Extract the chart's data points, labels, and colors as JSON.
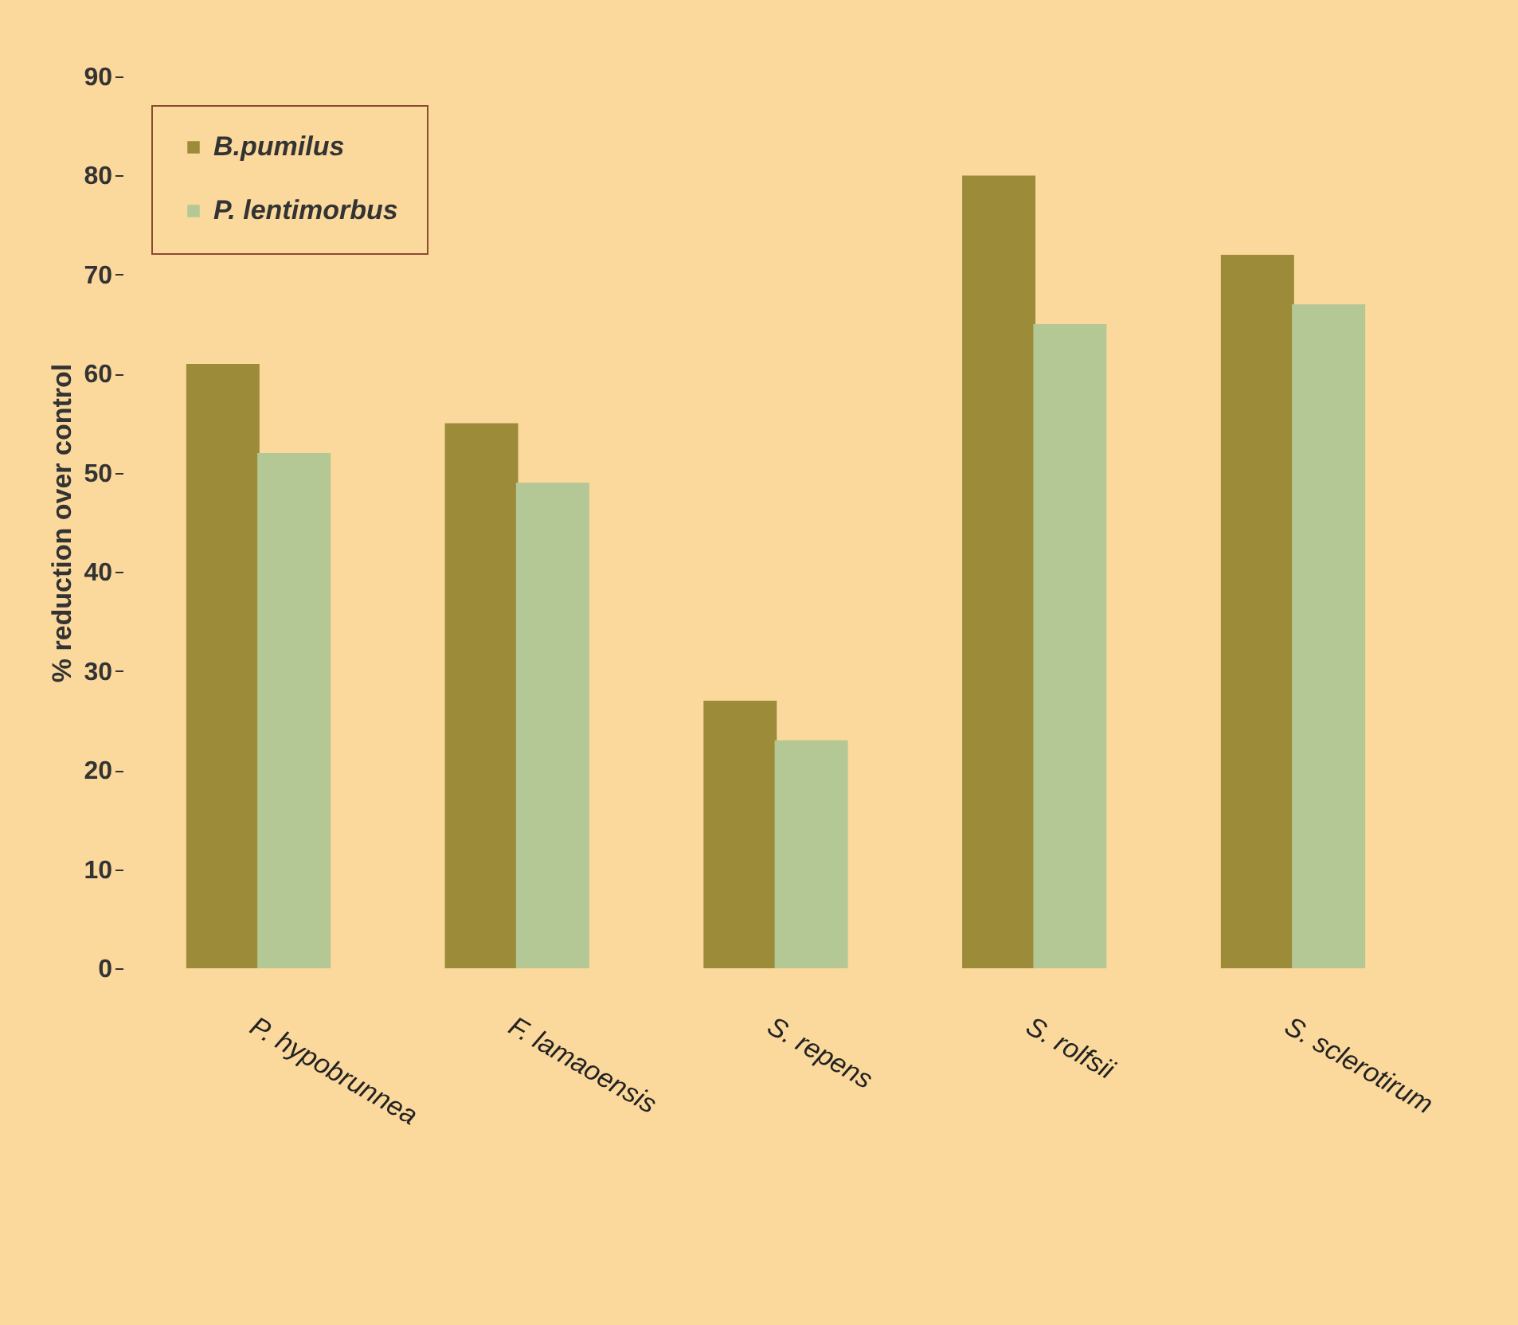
{
  "chart_data": {
    "type": "bar",
    "ylabel": "% reduction over control",
    "categories": [
      "P. hypobrunnea",
      "F. lamaoensis",
      "S. repens",
      "S. rolfsii",
      "S. sclerotirum"
    ],
    "series": [
      {
        "name": "B.pumilus",
        "color": "#9c8c3a",
        "values": [
          61,
          55,
          27,
          80,
          72
        ]
      },
      {
        "name": "P. lentimorbus",
        "color": "#b4c896",
        "values": [
          52,
          49,
          23,
          65,
          67
        ]
      }
    ],
    "ylim": [
      0,
      90
    ],
    "yticks": [
      0,
      10,
      20,
      30,
      40,
      50,
      60,
      70,
      80,
      90
    ],
    "legend": "top left"
  }
}
